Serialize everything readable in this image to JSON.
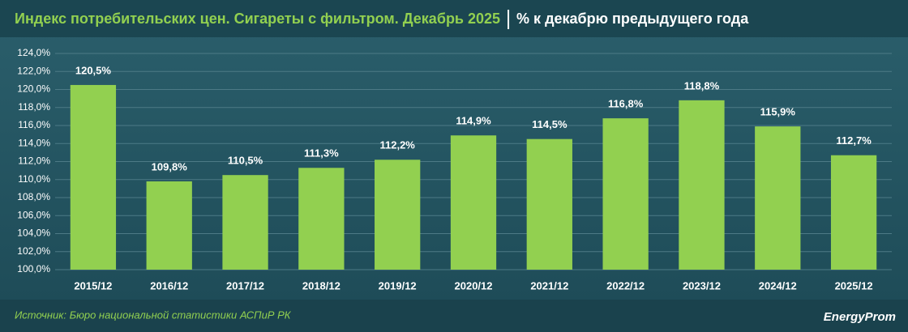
{
  "chart_data": {
    "type": "bar",
    "title": "Индекс потребительских цен. Сигареты с фильтром. Декабрь 2025",
    "subtitle": "% к декабрю предыдущего года",
    "source": "Источник: Бюро национальной статистики АСПиР РК",
    "logo": "EnergyProm",
    "categories": [
      "2015/12",
      "2016/12",
      "2017/12",
      "2018/12",
      "2019/12",
      "2020/12",
      "2021/12",
      "2022/12",
      "2023/12",
      "2024/12",
      "2025/12"
    ],
    "values": [
      120.5,
      109.8,
      110.5,
      111.3,
      112.2,
      114.9,
      114.5,
      116.8,
      118.8,
      115.9,
      112.7
    ],
    "value_labels": [
      "120,5%",
      "109,8%",
      "110,5%",
      "111,3%",
      "112,2%",
      "114,9%",
      "114,5%",
      "116,8%",
      "118,8%",
      "115,9%",
      "112,7%"
    ],
    "color": "#92d050",
    "ylim": [
      100,
      124
    ],
    "yticks": [
      {
        "value": 100,
        "label": "100,0%"
      },
      {
        "value": 102,
        "label": "102,0%"
      },
      {
        "value": 104,
        "label": "104,0%"
      },
      {
        "value": 106,
        "label": "106,0%"
      },
      {
        "value": 108,
        "label": "108,0%"
      },
      {
        "value": 110,
        "label": "110,0%"
      },
      {
        "value": 112,
        "label": "112,0%"
      },
      {
        "value": 114,
        "label": "114,0%"
      },
      {
        "value": 116,
        "label": "116,0%"
      },
      {
        "value": 118,
        "label": "118,0%"
      },
      {
        "value": 120,
        "label": "120,0%"
      },
      {
        "value": 122,
        "label": "122,0%"
      },
      {
        "value": 124,
        "label": "124,0%"
      }
    ],
    "grid": true
  }
}
